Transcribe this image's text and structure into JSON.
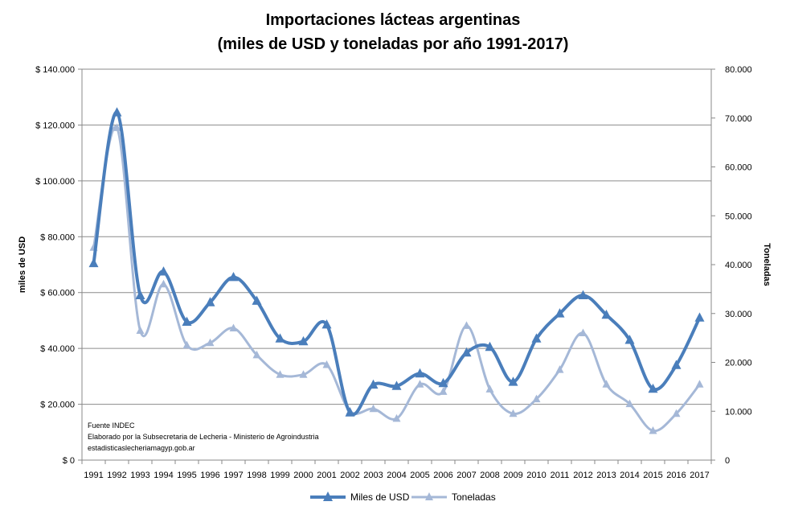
{
  "chart_data": {
    "type": "line",
    "title_line1": "Importaciones lácteas argentinas",
    "title_line2": "(miles de USD y toneladas por año 1991-2017)",
    "ylabel_left": "miles de USD",
    "ylabel_right": "Toneladas",
    "categories": [
      "1991",
      "1992",
      "1993",
      "1994",
      "1995",
      "1996",
      "1997",
      "1998",
      "1999",
      "2000",
      "2001",
      "2002",
      "2003",
      "2004",
      "2005",
      "2006",
      "2007",
      "2008",
      "2009",
      "2010",
      "2011",
      "2012",
      "2013",
      "2014",
      "2015",
      "2016",
      "2017"
    ],
    "y_left": {
      "min": 0,
      "max": 140000,
      "step": 20000,
      "tick_labels": [
        "$ 0",
        "$ 20.000",
        "$ 40.000",
        "$ 60.000",
        "$ 80.000",
        "$ 100.000",
        "$ 120.000",
        "$ 140.000"
      ]
    },
    "y_right": {
      "min": 0,
      "max": 80000,
      "step": 10000,
      "tick_labels": [
        "0",
        "10.000",
        "20.000",
        "30.000",
        "40.000",
        "50.000",
        "60.000",
        "70.000",
        "80.000"
      ]
    },
    "grid": true,
    "legend_position": "bottom",
    "series": [
      {
        "name": "Miles de USD",
        "axis": "left",
        "color": "#4a7ebb",
        "marker": "triangle",
        "values": [
          70500,
          124500,
          59000,
          67500,
          49500,
          56500,
          65500,
          57000,
          43500,
          42500,
          48500,
          17000,
          27000,
          26500,
          31000,
          27500,
          38500,
          40500,
          28000,
          43500,
          52500,
          59000,
          52000,
          43000,
          25500,
          34000,
          51000
        ]
      },
      {
        "name": "Toneladas",
        "axis": "right",
        "color": "#a5b8d7",
        "marker": "triangle",
        "values": [
          43500,
          68000,
          26500,
          36000,
          23500,
          24000,
          27000,
          21500,
          17500,
          17500,
          19500,
          10000,
          10500,
          8500,
          15500,
          14000,
          27500,
          14500,
          9500,
          12500,
          18500,
          26000,
          15500,
          11500,
          6000,
          9500,
          15500
        ]
      }
    ],
    "source_notes": [
      "Fuente INDEC",
      "Elaborado por la Subsecretaria de Lecheria - Ministerio de Agroindustria",
      "estadisticaslecheriamagyp.gob.ar"
    ]
  }
}
